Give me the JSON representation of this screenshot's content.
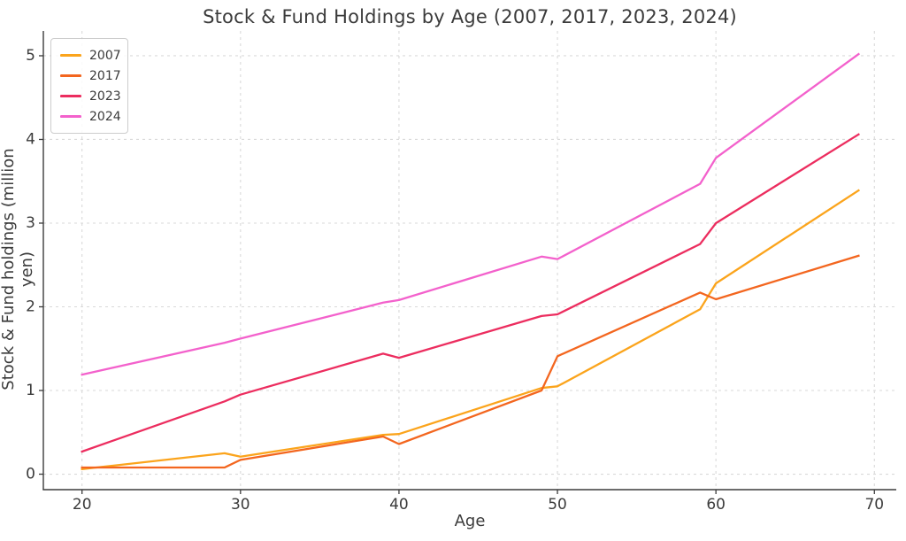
{
  "title": "Stock & Fund Holdings by Age (2007, 2017, 2023, 2024)",
  "chart_data": {
    "type": "line",
    "title": "Stock & Fund Holdings by Age (2007, 2017, 2023, 2024)",
    "xlabel": "Age",
    "ylabel": "Stock & Fund holdings (million yen)",
    "x": [
      20,
      29,
      30,
      39,
      40,
      49,
      50,
      59,
      60,
      69
    ],
    "series": [
      {
        "name": "2007",
        "color": "#FBA41C",
        "values": [
          0.06,
          0.25,
          0.21,
          0.47,
          0.48,
          1.03,
          1.05,
          1.97,
          2.28,
          3.39
        ]
      },
      {
        "name": "2017",
        "color": "#F3661F",
        "values": [
          0.08,
          0.08,
          0.17,
          0.45,
          0.36,
          1.0,
          1.41,
          2.17,
          2.09,
          2.61
        ]
      },
      {
        "name": "2023",
        "color": "#EC2D5F",
        "values": [
          0.27,
          0.87,
          0.95,
          1.44,
          1.39,
          1.89,
          1.91,
          2.75,
          3.0,
          4.06
        ]
      },
      {
        "name": "2024",
        "color": "#F361CC",
        "values": [
          1.19,
          1.57,
          1.62,
          2.05,
          2.08,
          2.6,
          2.57,
          3.47,
          3.78,
          5.02
        ]
      }
    ],
    "x_ticks": [
      20,
      30,
      40,
      50,
      60,
      70
    ],
    "y_ticks": [
      0,
      1,
      2,
      3,
      4,
      5
    ],
    "xlim": [
      17.56,
      71.38
    ],
    "ylim": [
      -0.185,
      5.296
    ],
    "legend_position": "upper left",
    "grid": "dashed"
  },
  "ui_colors": {
    "text": "#3b3b3b",
    "spine": "#3b3b3b",
    "grid": "#d9d9d9",
    "legend_border": "#cccccc"
  }
}
